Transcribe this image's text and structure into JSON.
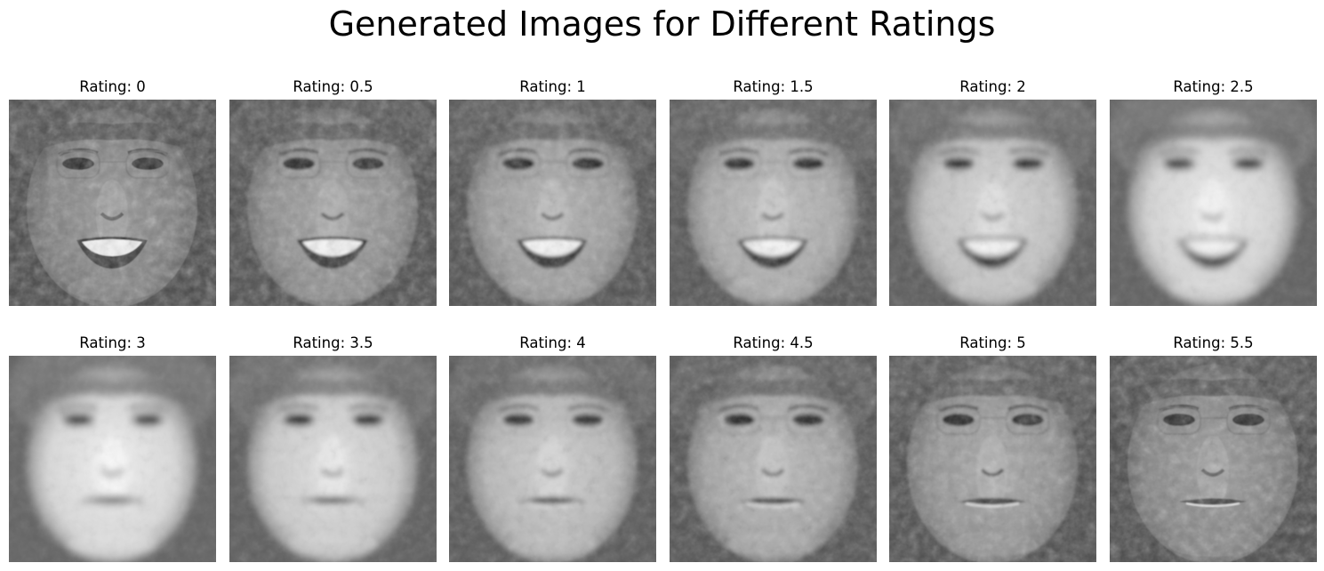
{
  "figure": {
    "title": "Generated Images for Different Ratings"
  },
  "panels": [
    {
      "title": "Rating: 0",
      "rating": 0,
      "sharpness": 1.0
    },
    {
      "title": "Rating: 0.5",
      "rating": 0.5,
      "sharpness": 0.85
    },
    {
      "title": "Rating: 1",
      "rating": 1,
      "sharpness": 0.7
    },
    {
      "title": "Rating: 1.5",
      "rating": 1.5,
      "sharpness": 0.55
    },
    {
      "title": "Rating: 2",
      "rating": 2,
      "sharpness": 0.3
    },
    {
      "title": "Rating: 2.5",
      "rating": 2.5,
      "sharpness": 0.1
    },
    {
      "title": "Rating: 3",
      "rating": 3,
      "sharpness": 0.05
    },
    {
      "title": "Rating: 3.5",
      "rating": 3.5,
      "sharpness": 0.2
    },
    {
      "title": "Rating: 4",
      "rating": 4,
      "sharpness": 0.4
    },
    {
      "title": "Rating: 4.5",
      "rating": 4.5,
      "sharpness": 0.6
    },
    {
      "title": "Rating: 5",
      "rating": 5,
      "sharpness": 0.8
    },
    {
      "title": "Rating: 5.5",
      "rating": 5.5,
      "sharpness": 0.95
    }
  ]
}
